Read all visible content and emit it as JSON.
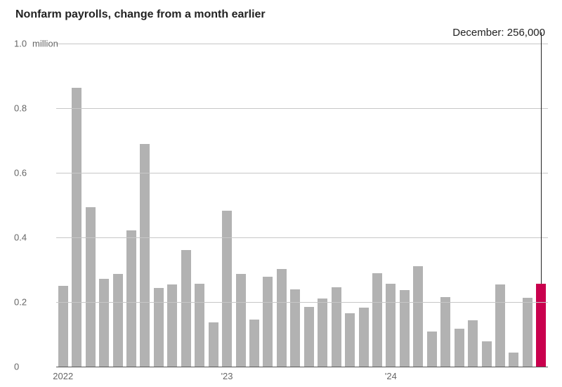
{
  "title": "Nonfarm payrolls, change from a month earlier",
  "annotation": {
    "label": "December:",
    "value": "256,000"
  },
  "chart": {
    "type": "bar",
    "y_axis": {
      "min": 0,
      "max": 1.0,
      "ticks": [
        0,
        0.2,
        0.4,
        0.6,
        0.8,
        1.0
      ],
      "tick_labels": [
        "0",
        "0.2",
        "0.4",
        "0.6",
        "0.8",
        "1.0"
      ],
      "unit_label": "million",
      "grid_color": "#c7c7c7",
      "baseline_color": "#555555",
      "label_color": "#666666",
      "label_fontsize": 13
    },
    "x_axis": {
      "year_ticks": [
        {
          "label": "2022",
          "index": 0
        },
        {
          "label": "'23",
          "index": 12
        },
        {
          "label": "'24",
          "index": 24
        }
      ],
      "label_color": "#666666",
      "label_fontsize": 13
    },
    "bar_color": "#b2b2b2",
    "highlight_color": "#c9004d",
    "background_color": "#ffffff",
    "bar_width_ratio": 0.72,
    "values": [
      0.25,
      0.862,
      0.494,
      0.271,
      0.287,
      0.422,
      0.69,
      0.243,
      0.255,
      0.36,
      0.256,
      0.136,
      0.482,
      0.287,
      0.146,
      0.278,
      0.303,
      0.24,
      0.184,
      0.21,
      0.246,
      0.165,
      0.182,
      0.29,
      0.256,
      0.236,
      0.31,
      0.108,
      0.216,
      0.118,
      0.144,
      0.078,
      0.255,
      0.043,
      0.212,
      0.256
    ],
    "highlight_index": 35
  }
}
